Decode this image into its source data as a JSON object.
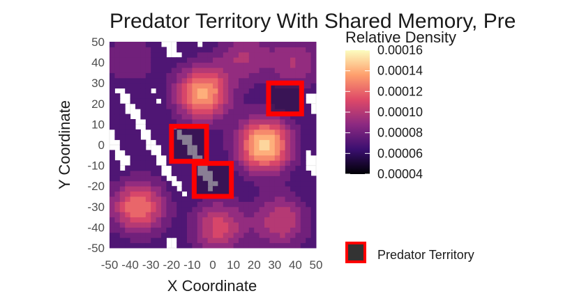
{
  "chart_data": {
    "type": "heatmap",
    "title": "Predator Territory With Shared Memory, Pre",
    "xlabel": "X Coordinate",
    "ylabel": "Y Coordinate",
    "xlim": [
      -50,
      50
    ],
    "ylim": [
      -50,
      50
    ],
    "xticks": [
      "-50",
      "-40",
      "-30",
      "-20",
      "-10",
      "0",
      "10",
      "20",
      "30",
      "40",
      "50"
    ],
    "yticks": [
      "50",
      "40",
      "30",
      "20",
      "10",
      "0",
      "-10",
      "-20",
      "-30",
      "-40",
      "-50"
    ],
    "grid": true,
    "colorbar": {
      "title": "Relative Density",
      "labels": [
        "0.00016",
        "0.00014",
        "0.00012",
        "0.00010",
        "0.00008",
        "0.00006",
        "0.00004"
      ],
      "range": [
        4e-05,
        0.00016
      ],
      "palette": [
        "#000004",
        "#3b0f70",
        "#8c2981",
        "#de4968",
        "#fe9f6d",
        "#fcfdbf"
      ]
    },
    "density_peaks": [
      {
        "x": 25,
        "y": 0,
        "value": 0.000155
      },
      {
        "x": -5,
        "y": 25,
        "value": 0.000145
      },
      {
        "x": -36,
        "y": -30,
        "value": 0.00013
      },
      {
        "x": 3,
        "y": -40,
        "value": 0.000115
      },
      {
        "x": 33,
        "y": -37,
        "value": 0.00011
      },
      {
        "x": 15,
        "y": 43,
        "value": 0.0001
      },
      {
        "x": 40,
        "y": 40,
        "value": 0.0001
      },
      {
        "x": -40,
        "y": 42,
        "value": 9e-05
      }
    ],
    "territories": [
      {
        "x": [
          -20,
          -3
        ],
        "y": [
          -8,
          9
        ]
      },
      {
        "x": [
          -9,
          9
        ],
        "y": [
          -25,
          -9
        ]
      },
      {
        "x": [
          27,
          43
        ],
        "y": [
          15,
          30
        ]
      }
    ],
    "legend": {
      "label": "Predator Territory",
      "fill": "#333333",
      "border": "#ff0000",
      "position": "right"
    }
  }
}
